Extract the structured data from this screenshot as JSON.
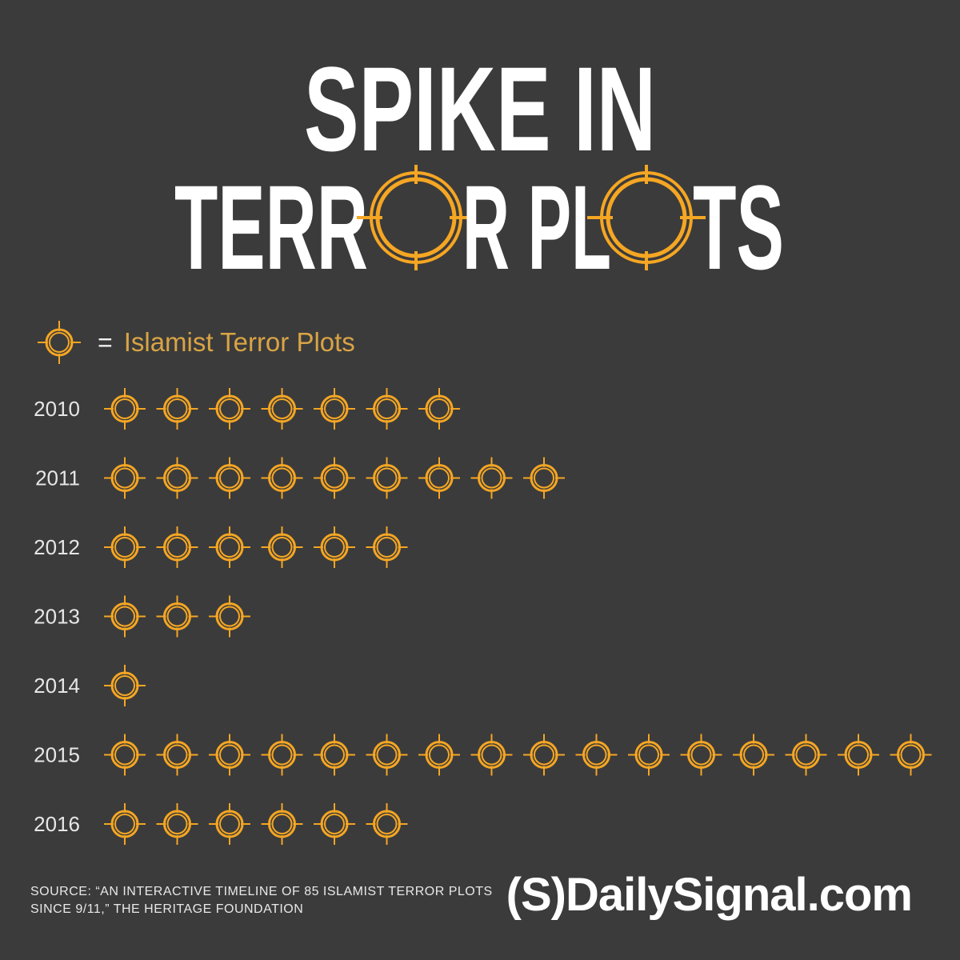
{
  "title": {
    "line1": "SPIKE IN",
    "line2_part1": "TERR",
    "line2_part2": "R PL",
    "line2_part3": "TS"
  },
  "legend": {
    "equals": "=",
    "label": "Islamist Terror Plots",
    "icon": "crosshair-icon"
  },
  "chart_data": {
    "type": "pictograph",
    "categories": [
      "2010",
      "2011",
      "2012",
      "2013",
      "2014",
      "2015",
      "2016"
    ],
    "values": [
      7,
      9,
      6,
      3,
      1,
      16,
      6
    ],
    "unit": "Islamist Terror Plots",
    "icon": "crosshair-icon",
    "icon_color": "#f5a623"
  },
  "source": {
    "line1": "SOURCE: “AN INTERACTIVE TIMELINE OF 85 ISLAMIST TERROR PLOTS",
    "line2": "SINCE 9/11,” THE HERITAGE FOUNDATION"
  },
  "brand": "(S)DailySignal.com",
  "colors": {
    "background": "#3b3b3b",
    "accent": "#f5a623",
    "title": "#ffffff"
  }
}
